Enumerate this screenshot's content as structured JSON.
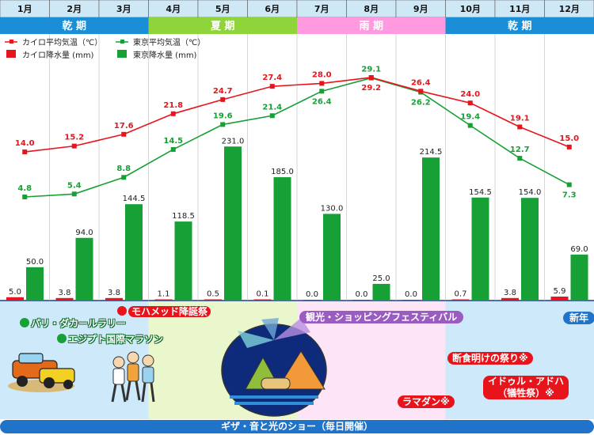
{
  "chart_data": {
    "type": "bar+line",
    "months": [
      "1月",
      "2月",
      "3月",
      "4月",
      "5月",
      "6月",
      "7月",
      "8月",
      "9月",
      "10月",
      "11月",
      "12月"
    ],
    "seasons": [
      {
        "label": "乾 期",
        "start": 0,
        "end": 2,
        "color": "#1a8fd8"
      },
      {
        "label": "夏 期",
        "start": 3,
        "end": 5,
        "color": "#8ed43a"
      },
      {
        "label": "雨 期",
        "start": 6,
        "end": 8,
        "color": "#ff9ae0"
      },
      {
        "label": "乾 期",
        "start": 9,
        "end": 11,
        "color": "#1a8fd8"
      }
    ],
    "legend": [
      {
        "label": "カイロ平均気温（℃）",
        "kind": "line",
        "color": "#e8141c"
      },
      {
        "label": "東京平均気温（℃）",
        "kind": "line",
        "color": "#16a035"
      },
      {
        "label": "カイロ降水量 (mm)",
        "kind": "bar",
        "color": "#e8141c"
      },
      {
        "label": "東京降水量 (mm)",
        "kind": "bar",
        "color": "#16a035"
      }
    ],
    "series": [
      {
        "name": "カイロ平均気温（℃）",
        "type": "line",
        "color": "#e8141c",
        "values": [
          14.0,
          15.2,
          17.6,
          21.8,
          24.7,
          27.4,
          28.0,
          29.2,
          26.4,
          24.0,
          19.1,
          15.0
        ],
        "labels": [
          "14.0",
          "15.2",
          "17.6",
          "21.8",
          "24.7",
          "27.4",
          "28.0",
          "29.2",
          "26.4",
          "24.0",
          "19.1",
          "15.0"
        ]
      },
      {
        "name": "東京平均気温（℃）",
        "type": "line",
        "color": "#16a035",
        "values": [
          4.8,
          5.4,
          8.8,
          14.5,
          19.6,
          21.4,
          26.4,
          29.1,
          26.2,
          19.4,
          12.7,
          7.3
        ],
        "labels": [
          "4.8",
          "5.4",
          "8.8",
          "14.5",
          "19.6",
          "21.4",
          "26.4",
          "29.1",
          "26.2",
          "19.4",
          "12.7",
          "7.3"
        ]
      },
      {
        "name": "カイロ降水量 (mm)",
        "type": "bar",
        "color": "#e8141c",
        "values": [
          5.0,
          3.8,
          3.8,
          1.1,
          0.5,
          0.1,
          0.0,
          0.0,
          0.0,
          0.7,
          3.8,
          5.9
        ],
        "labels": [
          "5.0",
          "3.8",
          "3.8",
          "1.1",
          "0.5",
          "0.1",
          "0.0",
          "0.0",
          "0.0",
          "0.7",
          "3.8",
          "5.9"
        ]
      },
      {
        "name": "東京降水量 (mm)",
        "type": "bar",
        "color": "#16a035",
        "values": [
          50.0,
          94.0,
          144.5,
          118.5,
          null,
          185.0,
          130.0,
          25.0,
          214.5,
          154.5,
          154.0,
          69.0
        ],
        "labels": [
          "50.0",
          "94.0",
          "144.5",
          "118.5",
          "231.0",
          "185.0",
          "130.0",
          "25.0",
          "214.5",
          "154.5",
          "154.0",
          "69.0"
        ]
      }
    ],
    "tokyo_may_bar_value": 231.0,
    "grid": "vertical month dividers",
    "legend_position": "top-left"
  },
  "events": {
    "mohammed": "モハメッド降誕祭",
    "paris_dakar": "パリ・ダカールラリー",
    "marathon": "エジプト国際マラソン",
    "shopping": "観光・ショッピングフェスティバル",
    "new_year": "新年",
    "eid_fitr": "断食明けの祭り※",
    "eid_adha_1": "イドゥル・アドハ",
    "eid_adha_2": "（犠牲祭）※",
    "ramadan": "ラマダン※",
    "sound_light": "ギザ・音と光のショー（毎日開催）"
  }
}
